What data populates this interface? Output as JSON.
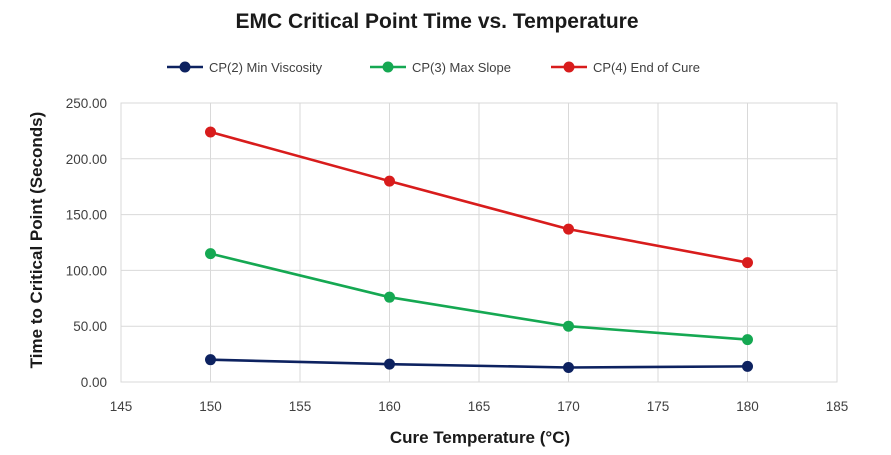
{
  "chart_data": {
    "type": "line",
    "title": "EMC Critical Point Time vs. Temperature",
    "xlabel": "Cure Temperature (°C)",
    "ylabel": "Time to Critical Point (Seconds)",
    "xlim": [
      145,
      185
    ],
    "ylim": [
      0,
      250
    ],
    "x_ticks": [
      145,
      150,
      155,
      160,
      165,
      170,
      175,
      180,
      185
    ],
    "y_ticks": [
      0,
      50,
      100,
      150,
      200,
      250
    ],
    "y_tick_labels": [
      "0.00",
      "50.00",
      "100.00",
      "150.00",
      "200.00",
      "250.00"
    ],
    "x": [
      150,
      160,
      170,
      180
    ],
    "grid": true,
    "legend_position": "top",
    "series": [
      {
        "name": "CP(2) Min Viscosity",
        "color": "#0d2260",
        "values": [
          20,
          16,
          13,
          14
        ]
      },
      {
        "name": "CP(3) Max Slope",
        "color": "#15a852",
        "values": [
          115,
          76,
          50,
          38
        ]
      },
      {
        "name": "CP(4) End of Cure",
        "color": "#d81c1c",
        "values": [
          224,
          180,
          137,
          107
        ]
      }
    ]
  }
}
